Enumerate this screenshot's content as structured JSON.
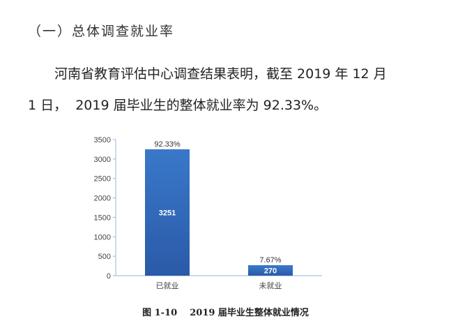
{
  "section": {
    "heading": "（一）总体调查就业率",
    "paragraph_line1": "河南省教育评估中心调查结果表明，截至 2019 年 12 月",
    "paragraph_line2": "1 日，  2019 届毕业生的整体就业率为 92.33%。"
  },
  "figure": {
    "caption": "图 1-10    2019 届毕业生整体就业情况"
  },
  "chart_data": {
    "type": "bar",
    "categories": [
      "已就业",
      "未就业"
    ],
    "values": [
      3251,
      270
    ],
    "value_labels": [
      "3251",
      "270"
    ],
    "percent_labels": [
      "92.33%",
      "7.67%"
    ],
    "ylim": [
      0,
      3500
    ],
    "yticks": [
      0,
      500,
      1000,
      1500,
      2000,
      2500,
      3000,
      3500
    ],
    "grid": false,
    "bar_color_top": "#3a78c9",
    "bar_color_bottom": "#2a5aa8",
    "axis_color": "#8fb4dd"
  }
}
